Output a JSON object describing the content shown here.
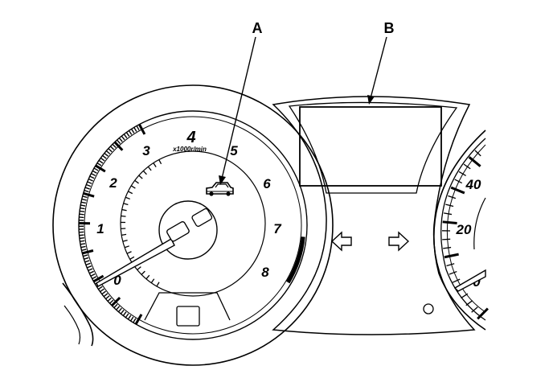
{
  "callouts": {
    "a": "A",
    "b": "B"
  },
  "tachometer": {
    "unit": "x1000r/min",
    "labels": [
      "0",
      "1",
      "2",
      "3",
      "4",
      "5",
      "6",
      "7",
      "8"
    ]
  },
  "speedometer": {
    "labels": [
      "0",
      "20",
      "40"
    ]
  },
  "icons": {
    "tacho_indicator": "car-indicator-icon",
    "left": "left-arrow-icon",
    "right": "right-arrow-icon",
    "button": "reset-button-icon"
  },
  "colors": {
    "line": "#000000",
    "background": "#ffffff",
    "band": "#000000"
  }
}
